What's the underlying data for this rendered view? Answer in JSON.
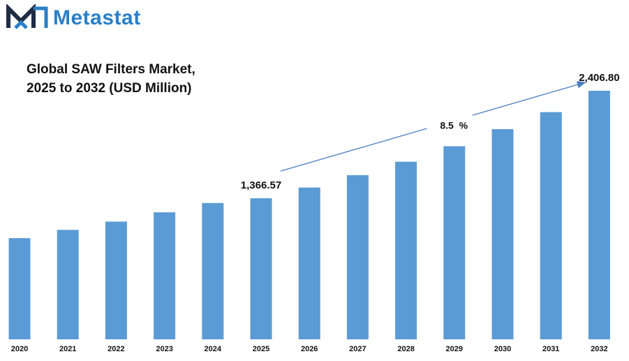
{
  "logo": {
    "text": "Metastat",
    "colors": {
      "dark": "#1f2d44",
      "accent": "#2a7fc7"
    }
  },
  "title": {
    "line1": "Global SAW Filters Market,",
    "line2": "2025 to 2032 (USD Million)"
  },
  "chart_data": {
    "type": "bar",
    "categories": [
      "2020",
      "2021",
      "2022",
      "2023",
      "2024",
      "2025",
      "2026",
      "2027",
      "2028",
      "2029",
      "2030",
      "2031",
      "2032"
    ],
    "values": [
      980,
      1060,
      1140,
      1230,
      1320,
      1366.57,
      1470,
      1590,
      1720,
      1870,
      2035,
      2200,
      2406.8
    ],
    "data_labels": [
      {
        "category": "2025",
        "text": "1,366.57"
      },
      {
        "category": "2032",
        "text": "2,406.80"
      }
    ],
    "annotation": {
      "text": "8.5  %",
      "from": "2025",
      "to": "2032"
    },
    "bar_color": "#5b9bd5",
    "arrow_color": "#4a7fc1",
    "ylim": [
      0,
      2650
    ],
    "grid": false
  }
}
